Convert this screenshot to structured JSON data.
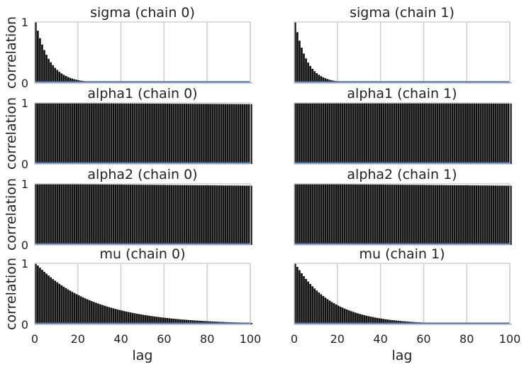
{
  "chart_data": [
    {
      "type": "bar",
      "title": "sigma (chain 0)",
      "ylabel": "correlation",
      "xlabel": "",
      "xlim": [
        0,
        100
      ],
      "ylim": [
        0,
        1
      ],
      "xticks": [
        "0",
        "20",
        "40",
        "60",
        "80",
        "100"
      ],
      "yticks": [
        "0",
        "1"
      ],
      "grid": true,
      "bar_color": "#111111",
      "baseline_color": "#4c72b0",
      "acf": {
        "kind": "exp",
        "tau": 6.5,
        "start": 0,
        "end": 30
      }
    },
    {
      "type": "bar",
      "title": "sigma (chain 1)",
      "ylabel": "",
      "xlabel": "",
      "xlim": [
        0,
        100
      ],
      "ylim": [
        0,
        1
      ],
      "xticks": [
        "0",
        "20",
        "40",
        "60",
        "80",
        "100"
      ],
      "yticks": [],
      "grid": true,
      "bar_color": "#111111",
      "baseline_color": "#4c72b0",
      "acf": {
        "kind": "exp",
        "tau": 5.5,
        "start": 0,
        "end": 30
      }
    },
    {
      "type": "bar",
      "title": "alpha1 (chain 0)",
      "ylabel": "correlation",
      "xlabel": "",
      "xlim": [
        0,
        100
      ],
      "ylim": [
        0,
        1
      ],
      "xticks": [
        "0",
        "20",
        "40",
        "60",
        "80",
        "100"
      ],
      "yticks": [
        "0",
        "1"
      ],
      "grid": true,
      "bar_color": "#111111",
      "baseline_color": "#4c72b0",
      "acf": {
        "kind": "const",
        "start": 1.0,
        "end": 0.98
      }
    },
    {
      "type": "bar",
      "title": "alpha1 (chain 1)",
      "ylabel": "",
      "xlabel": "",
      "xlim": [
        0,
        100
      ],
      "ylim": [
        0,
        1
      ],
      "xticks": [
        "0",
        "20",
        "40",
        "60",
        "80",
        "100"
      ],
      "yticks": [],
      "grid": true,
      "bar_color": "#111111",
      "baseline_color": "#4c72b0",
      "acf": {
        "kind": "const",
        "start": 1.0,
        "end": 0.99
      }
    },
    {
      "type": "bar",
      "title": "alpha2 (chain 0)",
      "ylabel": "correlation",
      "xlabel": "",
      "xlim": [
        0,
        100
      ],
      "ylim": [
        0,
        1
      ],
      "xticks": [
        "0",
        "20",
        "40",
        "60",
        "80",
        "100"
      ],
      "yticks": [
        "0",
        "1"
      ],
      "grid": true,
      "bar_color": "#111111",
      "baseline_color": "#4c72b0",
      "acf": {
        "kind": "const",
        "start": 1.0,
        "end": 0.97
      }
    },
    {
      "type": "bar",
      "title": "alpha2 (chain 1)",
      "ylabel": "",
      "xlabel": "",
      "xlim": [
        0,
        100
      ],
      "ylim": [
        0,
        1
      ],
      "xticks": [
        "0",
        "20",
        "40",
        "60",
        "80",
        "100"
      ],
      "yticks": [],
      "grid": true,
      "bar_color": "#111111",
      "baseline_color": "#4c72b0",
      "acf": {
        "kind": "const",
        "start": 1.0,
        "end": 0.97
      }
    },
    {
      "type": "bar",
      "title": "mu (chain 0)",
      "ylabel": "correlation",
      "xlabel": "lag",
      "xlim": [
        0,
        100
      ],
      "ylim": [
        0,
        1
      ],
      "xticks": [
        "0",
        "20",
        "40",
        "60",
        "80",
        "100"
      ],
      "yticks": [
        "0",
        "1"
      ],
      "grid": true,
      "bar_color": "#111111",
      "baseline_color": "#4c72b0",
      "acf": {
        "kind": "exp",
        "tau": 27,
        "start": 0,
        "end": 80
      }
    },
    {
      "type": "bar",
      "title": "mu (chain 1)",
      "ylabel": "",
      "xlabel": "lag",
      "xlim": [
        0,
        100
      ],
      "ylim": [
        0,
        1
      ],
      "xticks": [
        "0",
        "20",
        "40",
        "60",
        "80",
        "100"
      ],
      "yticks": [],
      "grid": true,
      "bar_color": "#111111",
      "baseline_color": "#4c72b0",
      "acf": {
        "kind": "exp",
        "tau": 17,
        "start": 0,
        "end": 55
      }
    }
  ]
}
